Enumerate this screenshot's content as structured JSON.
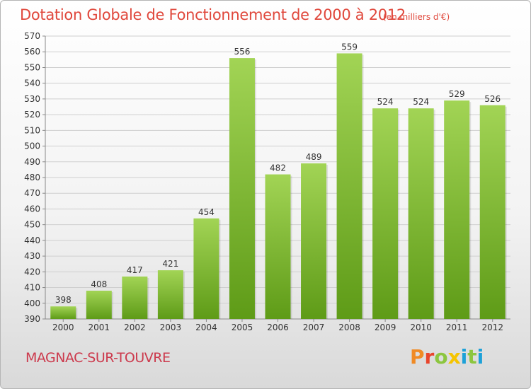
{
  "header": {
    "title": "Dotation Globale de Fonctionnement de 2000 à 2012",
    "subtitle": "(en milliers d'€)"
  },
  "footer": {
    "place": "MAGNAC-SUR-TOUVRE",
    "brand": "Proxiti",
    "brand_colors": [
      "#f08a24",
      "#e8452c",
      "#8cc63f",
      "#f5c400",
      "#1da1d8",
      "#8cc63f",
      "#1da1d8"
    ]
  },
  "colors": {
    "title": "#e0483c",
    "bar_top": "#a2d455",
    "bar_bottom": "#5e9b17",
    "grid": "#cfcfcf"
  },
  "chart_data": {
    "type": "bar",
    "title": "Dotation Globale de Fonctionnement de 2000 à 2012",
    "subtitle": "(en milliers d'€)",
    "xlabel": "",
    "ylabel": "",
    "categories": [
      "2000",
      "2001",
      "2002",
      "2003",
      "2004",
      "2005",
      "2006",
      "2007",
      "2008",
      "2009",
      "2010",
      "2011",
      "2012"
    ],
    "values": [
      398,
      408,
      417,
      421,
      454,
      556,
      482,
      489,
      559,
      524,
      524,
      529,
      526
    ],
    "ylim": [
      390,
      570
    ],
    "ytick_step": 10,
    "grid": true,
    "legend": "none"
  }
}
